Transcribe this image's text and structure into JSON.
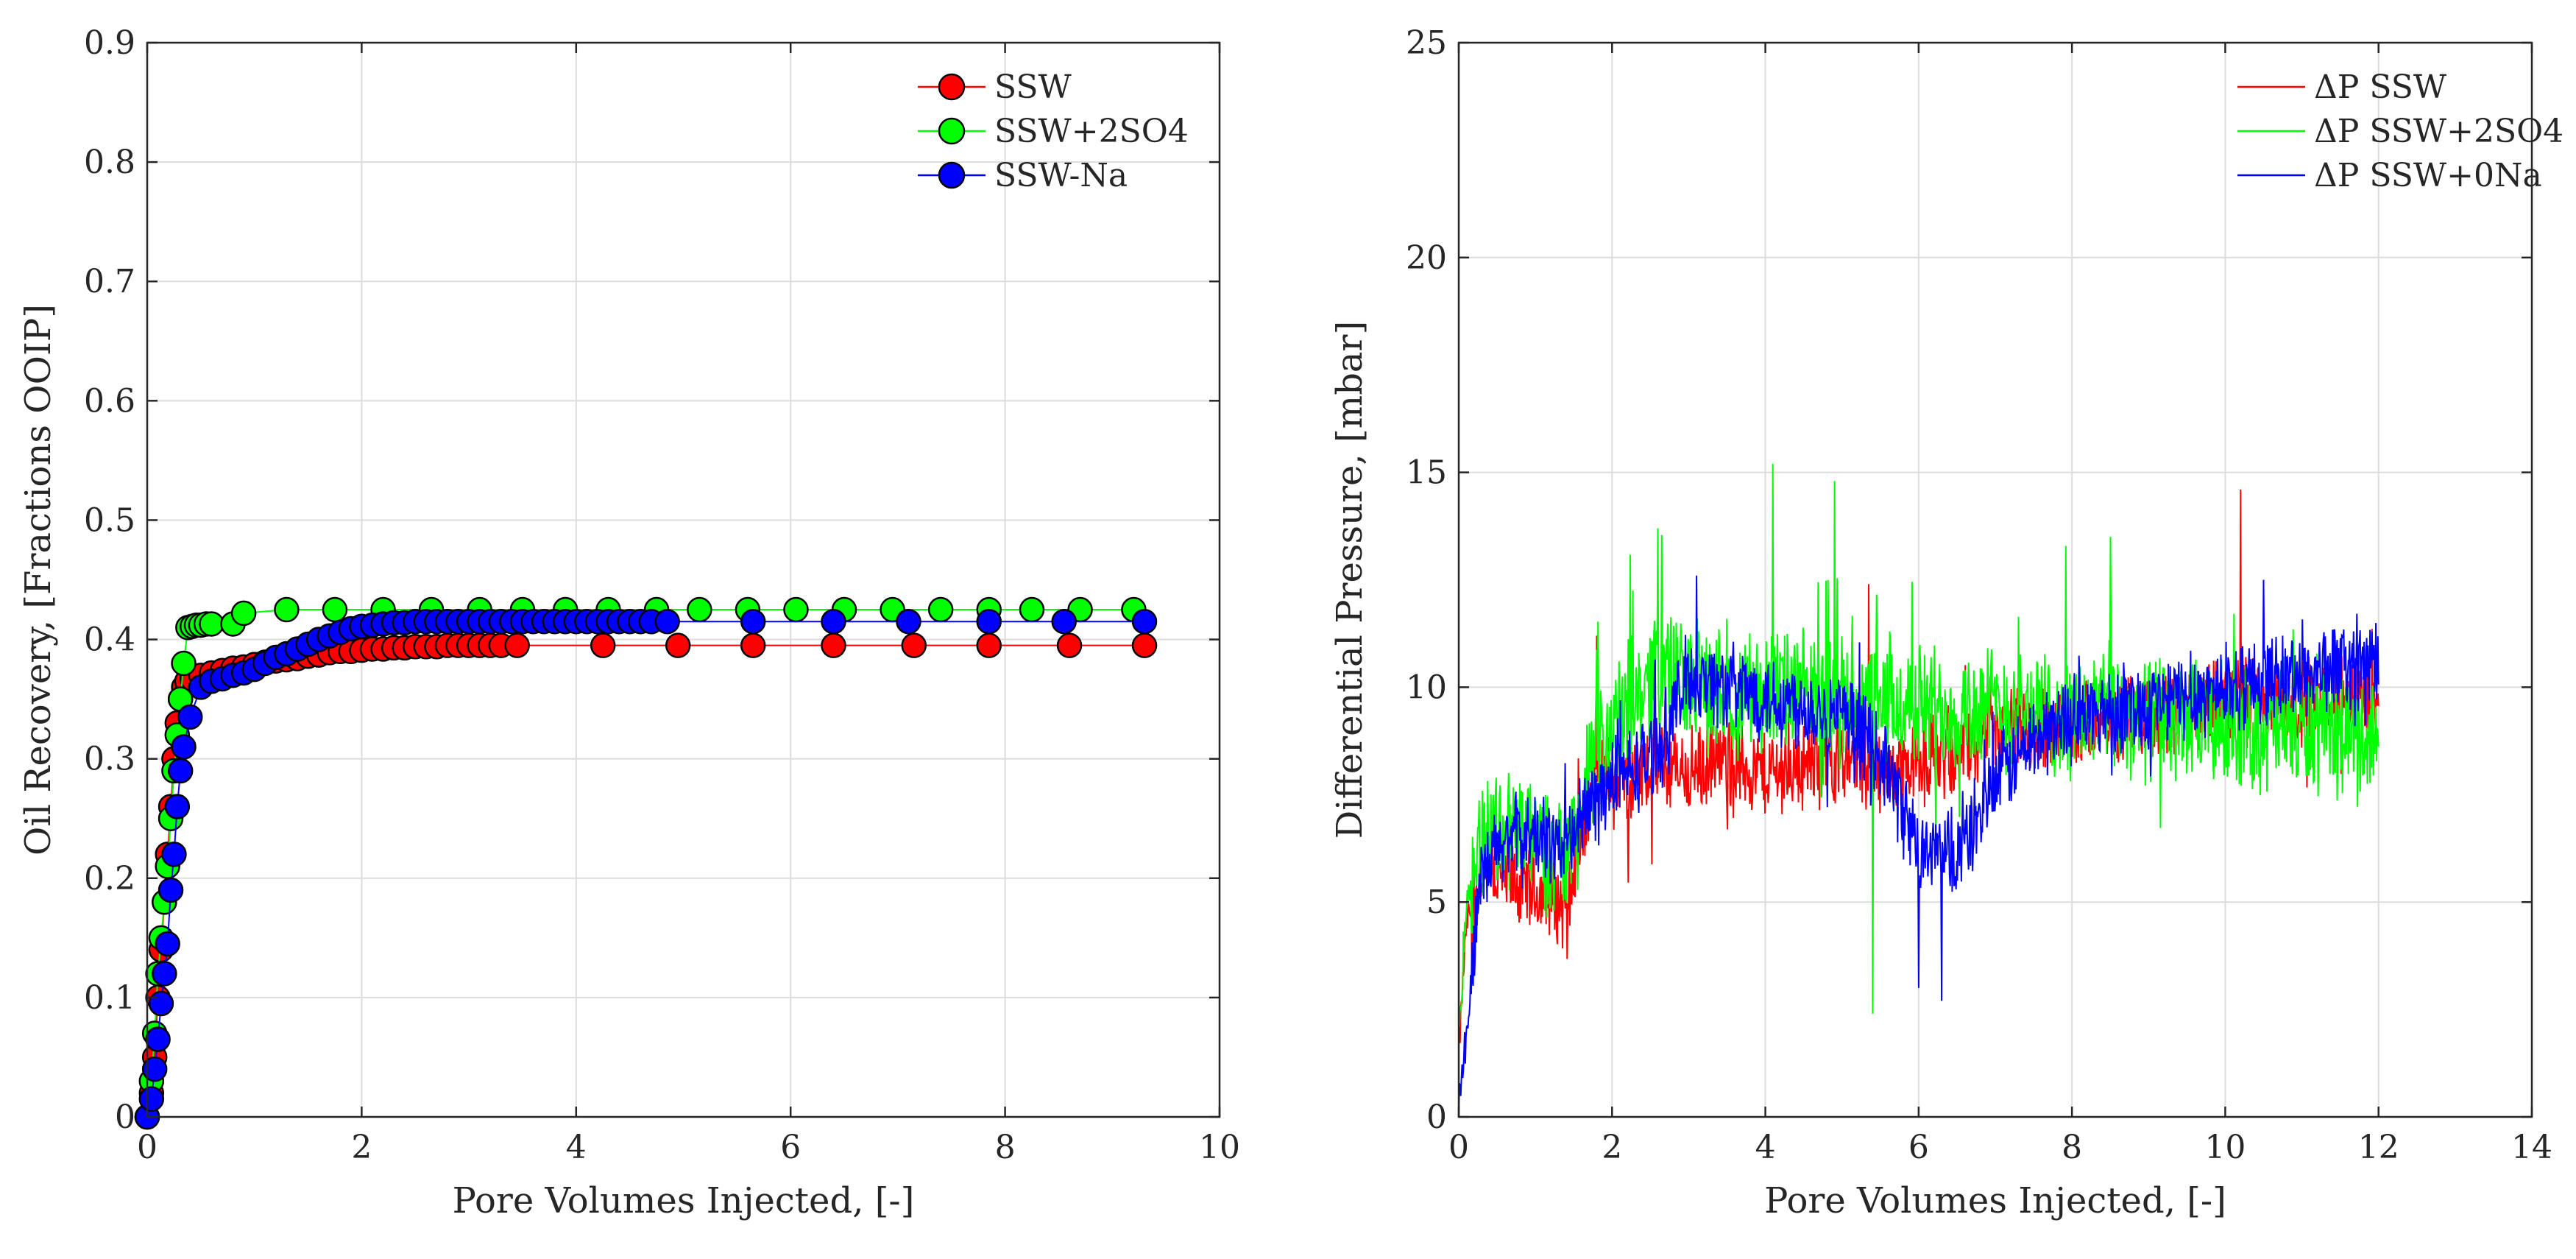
{
  "chart_data": [
    {
      "type": "scatter",
      "title": "",
      "xlabel": "Pore Volumes Injected, [-]",
      "ylabel": "Oil Recovery, [Fractions OOIP]",
      "xlim": [
        0,
        10
      ],
      "ylim": [
        0,
        0.9
      ],
      "xticks": [
        0,
        2,
        4,
        6,
        8,
        10
      ],
      "yticks": [
        0,
        0.1,
        0.2,
        0.3,
        0.4,
        0.5,
        0.6,
        0.7,
        0.8,
        0.9
      ],
      "xtick_labels": [
        "0",
        "2",
        "4",
        "6",
        "8",
        "10"
      ],
      "ytick_labels": [
        "0",
        "0.1",
        "0.2",
        "0.3",
        "0.4",
        "0.5",
        "0.6",
        "0.7",
        "0.8",
        "0.9"
      ],
      "grid": true,
      "legend": "top-right",
      "series": [
        {
          "name": "SSW",
          "color": "#ff0000",
          "x": [
            0.0,
            0.04,
            0.07,
            0.1,
            0.13,
            0.16,
            0.19,
            0.22,
            0.25,
            0.28,
            0.31,
            0.34,
            0.37,
            0.42,
            0.5,
            0.6,
            0.7,
            0.8,
            0.9,
            1.0,
            1.1,
            1.2,
            1.3,
            1.4,
            1.5,
            1.6,
            1.7,
            1.8,
            1.9,
            2.0,
            2.1,
            2.2,
            2.3,
            2.4,
            2.5,
            2.6,
            2.7,
            2.8,
            2.9,
            3.0,
            3.1,
            3.2,
            3.3,
            3.45,
            4.25,
            4.95,
            5.65,
            6.4,
            7.15,
            7.85,
            8.6,
            9.3
          ],
          "y": [
            0.0,
            0.02,
            0.05,
            0.1,
            0.14,
            0.18,
            0.22,
            0.26,
            0.3,
            0.33,
            0.35,
            0.36,
            0.365,
            0.367,
            0.37,
            0.372,
            0.374,
            0.376,
            0.377,
            0.379,
            0.381,
            0.382,
            0.383,
            0.384,
            0.386,
            0.387,
            0.389,
            0.39,
            0.39,
            0.391,
            0.392,
            0.392,
            0.393,
            0.393,
            0.394,
            0.394,
            0.394,
            0.395,
            0.395,
            0.395,
            0.395,
            0.395,
            0.395,
            0.395,
            0.395,
            0.395,
            0.395,
            0.395,
            0.395,
            0.395,
            0.395,
            0.395
          ]
        },
        {
          "name": "SSW+2SO4",
          "color": "#00ff00",
          "x": [
            0.0,
            0.04,
            0.07,
            0.1,
            0.13,
            0.16,
            0.19,
            0.22,
            0.25,
            0.28,
            0.31,
            0.34,
            0.38,
            0.42,
            0.46,
            0.5,
            0.55,
            0.6,
            0.8,
            0.9,
            1.3,
            1.75,
            2.2,
            2.65,
            3.1,
            3.5,
            3.9,
            4.3,
            4.75,
            5.15,
            5.6,
            6.05,
            6.5,
            6.95,
            7.4,
            7.85,
            8.25,
            8.7,
            9.2
          ],
          "y": [
            0.0,
            0.03,
            0.07,
            0.12,
            0.15,
            0.18,
            0.21,
            0.25,
            0.29,
            0.32,
            0.35,
            0.38,
            0.41,
            0.411,
            0.412,
            0.412,
            0.413,
            0.413,
            0.413,
            0.422,
            0.425,
            0.425,
            0.425,
            0.425,
            0.425,
            0.425,
            0.425,
            0.425,
            0.425,
            0.425,
            0.425,
            0.425,
            0.425,
            0.425,
            0.425,
            0.425,
            0.425,
            0.425,
            0.425
          ]
        },
        {
          "name": "SSW-Na",
          "color": "#0000ff",
          "x": [
            0.0,
            0.04,
            0.07,
            0.1,
            0.13,
            0.16,
            0.19,
            0.22,
            0.25,
            0.28,
            0.31,
            0.34,
            0.4,
            0.5,
            0.6,
            0.7,
            0.8,
            0.9,
            1.0,
            1.1,
            1.2,
            1.3,
            1.4,
            1.5,
            1.6,
            1.7,
            1.8,
            1.9,
            2.0,
            2.1,
            2.2,
            2.3,
            2.4,
            2.5,
            2.6,
            2.7,
            2.8,
            2.9,
            3.0,
            3.1,
            3.2,
            3.3,
            3.4,
            3.5,
            3.6,
            3.7,
            3.8,
            3.9,
            4.0,
            4.1,
            4.2,
            4.3,
            4.4,
            4.5,
            4.6,
            4.7,
            4.85,
            5.65,
            6.4,
            7.1,
            7.85,
            8.55,
            9.3
          ],
          "y": [
            0.0,
            0.015,
            0.04,
            0.065,
            0.095,
            0.12,
            0.145,
            0.19,
            0.22,
            0.26,
            0.29,
            0.31,
            0.335,
            0.36,
            0.365,
            0.367,
            0.37,
            0.372,
            0.375,
            0.38,
            0.385,
            0.388,
            0.392,
            0.396,
            0.4,
            0.403,
            0.406,
            0.409,
            0.411,
            0.412,
            0.413,
            0.414,
            0.414,
            0.415,
            0.415,
            0.415,
            0.415,
            0.415,
            0.415,
            0.415,
            0.415,
            0.415,
            0.415,
            0.415,
            0.415,
            0.415,
            0.415,
            0.415,
            0.415,
            0.415,
            0.415,
            0.415,
            0.415,
            0.415,
            0.415,
            0.415,
            0.415,
            0.415,
            0.415,
            0.415,
            0.415,
            0.415,
            0.415
          ]
        }
      ]
    },
    {
      "type": "line",
      "title": "",
      "xlabel": "Pore Volumes Injected, [-]",
      "ylabel": "Differential Pressure, [mbar]",
      "xlim": [
        0,
        14
      ],
      "ylim": [
        0,
        25
      ],
      "xticks": [
        0,
        2,
        4,
        6,
        8,
        10,
        12,
        14
      ],
      "yticks": [
        0,
        5,
        10,
        15,
        20,
        25
      ],
      "xtick_labels": [
        "0",
        "2",
        "4",
        "6",
        "8",
        "10",
        "12",
        "14"
      ],
      "ytick_labels": [
        "0",
        "5",
        "10",
        "15",
        "20",
        "25"
      ],
      "grid": true,
      "legend": "top-right",
      "series": [
        {
          "name": "ΔP SSW",
          "color": "#ff0000",
          "x": [
            0,
            0.1,
            0.3,
            0.6,
            1.0,
            1.4,
            1.8,
            2.2,
            2.6,
            3.0,
            3.5,
            4.0,
            4.5,
            5.0,
            5.5,
            6.0,
            6.5,
            7.0,
            7.5,
            8.0,
            8.5,
            9.0,
            9.5,
            10.0,
            10.2,
            10.5,
            11.0,
            11.5,
            12.0
          ],
          "y": [
            1.5,
            4.5,
            5.8,
            5.5,
            5.2,
            5.0,
            8.0,
            7.8,
            8.2,
            8.0,
            8.3,
            8.0,
            8.2,
            8.4,
            8.0,
            8.3,
            8.5,
            8.8,
            9.0,
            9.2,
            9.3,
            9.3,
            9.5,
            9.5,
            10.0,
            9.6,
            9.7,
            9.8,
            9.8
          ],
          "noise": 1.2,
          "spikes": [
            [
              1.8,
              11.2
            ],
            [
              5.35,
              12.4
            ],
            [
              10.2,
              14.6
            ]
          ]
        },
        {
          "name": "ΔP SSW+2SO4",
          "color": "#00ff00",
          "x": [
            0,
            0.1,
            0.3,
            0.6,
            1.0,
            1.4,
            1.8,
            2.2,
            2.6,
            3.0,
            3.5,
            4.0,
            4.5,
            5.0,
            5.5,
            6.0,
            6.5,
            7.0,
            7.5,
            8.0,
            8.5,
            9.0,
            9.5,
            10.0,
            10.5,
            11.0,
            11.5,
            12.0
          ],
          "y": [
            2.0,
            5.0,
            6.5,
            6.8,
            6.5,
            6.0,
            8.5,
            9.5,
            10.5,
            10.2,
            9.8,
            10.0,
            9.8,
            9.7,
            9.5,
            9.6,
            9.5,
            9.5,
            9.5,
            9.3,
            9.5,
            9.3,
            9.2,
            9.1,
            9.0,
            9.0,
            8.9,
            8.8
          ],
          "noise": 1.7,
          "spikes": [
            [
              2.6,
              13.7
            ],
            [
              4.1,
              15.2
            ],
            [
              4.9,
              14.8
            ],
            [
              5.4,
              2.4
            ],
            [
              8.5,
              13.5
            ]
          ]
        },
        {
          "name": "ΔP SSW+0Na",
          "color": "#0000ff",
          "x": [
            0,
            0.1,
            0.3,
            0.6,
            1.0,
            1.4,
            1.8,
            2.2,
            2.6,
            3.0,
            3.5,
            4.0,
            4.5,
            5.0,
            5.5,
            6.0,
            6.5,
            7.0,
            7.5,
            8.0,
            8.5,
            9.0,
            9.5,
            10.0,
            10.5,
            11.0,
            11.5,
            12.0
          ],
          "y": [
            0.5,
            2.0,
            5.5,
            6.5,
            6.5,
            6.3,
            7.5,
            8.0,
            8.5,
            10.3,
            10.0,
            9.8,
            9.6,
            9.3,
            8.5,
            6.2,
            6.0,
            7.8,
            8.8,
            9.3,
            9.5,
            9.6,
            9.8,
            10.0,
            10.2,
            10.3,
            10.5,
            10.5
          ],
          "noise": 1.2,
          "spikes": [
            [
              3.1,
              12.6
            ],
            [
              6.0,
              3.0
            ],
            [
              6.3,
              2.7
            ],
            [
              10.5,
              12.5
            ]
          ]
        }
      ]
    }
  ]
}
